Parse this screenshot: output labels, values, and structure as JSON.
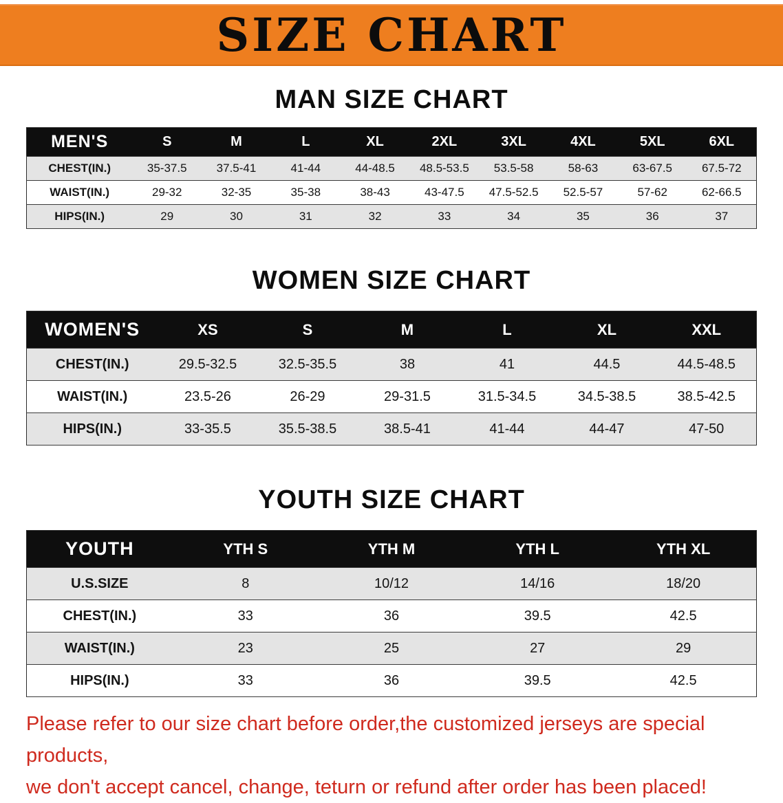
{
  "banner": {
    "title": "SIZE CHART",
    "bg_color": "#ee7e1f"
  },
  "sections": [
    {
      "heading": "MAN SIZE CHART",
      "header": {
        "label": "MEN'S",
        "columns": [
          "S",
          "M",
          "L",
          "XL",
          "2XL",
          "3XL",
          "4XL",
          "5XL",
          "6XL"
        ]
      },
      "rows": [
        {
          "label": "CHEST(IN.)",
          "values": [
            "35-37.5",
            "37.5-41",
            "41-44",
            "44-48.5",
            "48.5-53.5",
            "53.5-58",
            "58-63",
            "63-67.5",
            "67.5-72"
          ]
        },
        {
          "label": "WAIST(IN.)",
          "values": [
            "29-32",
            "32-35",
            "35-38",
            "38-43",
            "43-47.5",
            "47.5-52.5",
            "52.5-57",
            "57-62",
            "62-66.5"
          ]
        },
        {
          "label": "HIPS(IN.)",
          "values": [
            "29",
            "30",
            "31",
            "32",
            "33",
            "34",
            "35",
            "36",
            "37"
          ]
        }
      ]
    },
    {
      "heading": "WOMEN SIZE CHART",
      "header": {
        "label": "WOMEN'S",
        "columns": [
          "XS",
          "S",
          "M",
          "L",
          "XL",
          "XXL"
        ]
      },
      "rows": [
        {
          "label": "CHEST(IN.)",
          "values": [
            "29.5-32.5",
            "32.5-35.5",
            "38",
            "41",
            "44.5",
            "44.5-48.5"
          ]
        },
        {
          "label": "WAIST(IN.)",
          "values": [
            "23.5-26",
            "26-29",
            "29-31.5",
            "31.5-34.5",
            "34.5-38.5",
            "38.5-42.5"
          ]
        },
        {
          "label": "HIPS(IN.)",
          "values": [
            "33-35.5",
            "35.5-38.5",
            "38.5-41",
            "41-44",
            "44-47",
            "47-50"
          ]
        }
      ]
    },
    {
      "heading": "YOUTH SIZE CHART",
      "header": {
        "label": "YOUTH",
        "columns": [
          "YTH S",
          "YTH M",
          "YTH L",
          "YTH XL"
        ]
      },
      "rows": [
        {
          "label": "U.S.SIZE",
          "values": [
            "8",
            "10/12",
            "14/16",
            "18/20"
          ]
        },
        {
          "label": "CHEST(IN.)",
          "values": [
            "33",
            "36",
            "39.5",
            "42.5"
          ]
        },
        {
          "label": "WAIST(IN.)",
          "values": [
            "23",
            "25",
            "27",
            "29"
          ]
        },
        {
          "label": "HIPS(IN.)",
          "values": [
            "33",
            "36",
            "39.5",
            "42.5"
          ]
        }
      ]
    }
  ],
  "footer": {
    "line1": "Please refer to our size chart before order,the customized jerseys are special products,",
    "line2": "we don't accept cancel, change, teturn or refund after order has been placed!",
    "color": "#cf2a1e"
  }
}
